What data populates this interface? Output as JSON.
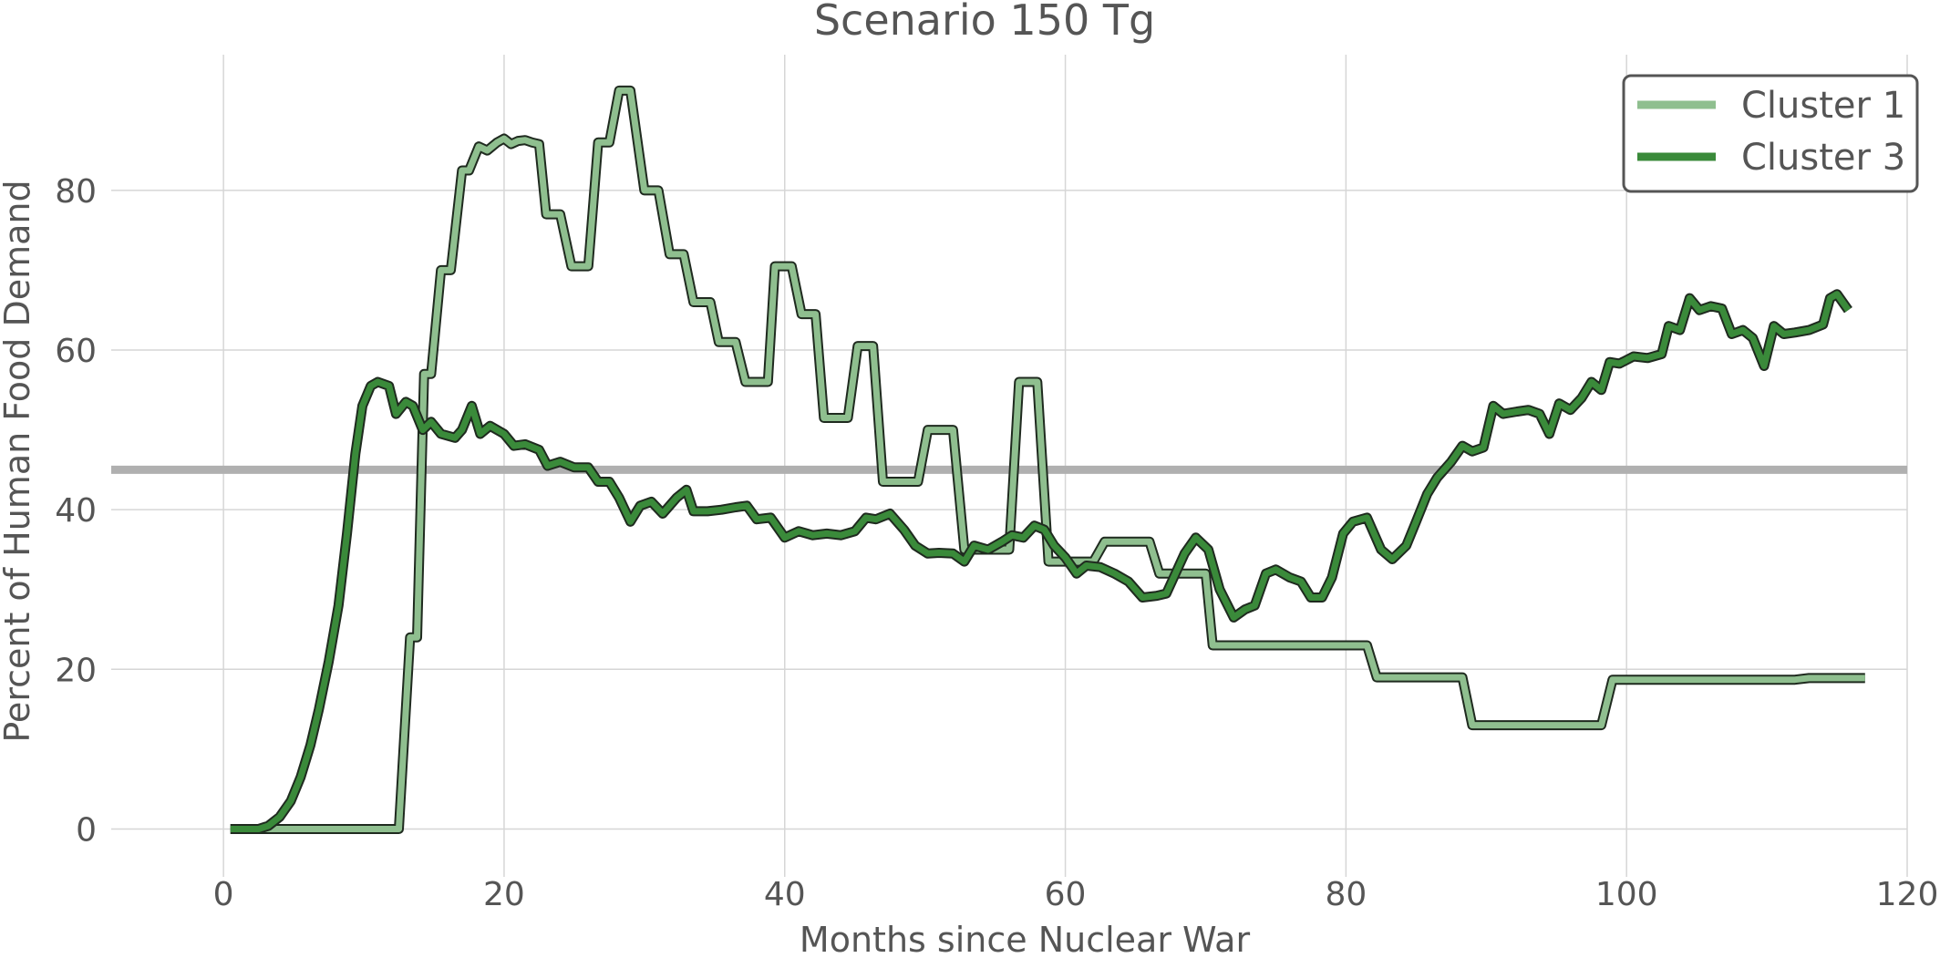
{
  "chart_data": {
    "type": "line",
    "title": "Scenario 150 Tg",
    "xlabel": "Months since Nuclear War",
    "ylabel": "Percent of Human Food Demand",
    "xlim": [
      -8,
      120
    ],
    "ylim": [
      -6,
      97
    ],
    "xticks": [
      0,
      20,
      40,
      60,
      80,
      100,
      120
    ],
    "yticks": [
      0,
      20,
      40,
      60,
      80
    ],
    "grid": true,
    "legend_position": "top-right",
    "reference_line": {
      "y": 45,
      "color": "#b0b0b0"
    },
    "series": [
      {
        "name": "Cluster 1",
        "color": "#8fbf8f",
        "points": [
          [
            0.5,
            0
          ],
          [
            12.5,
            0
          ],
          [
            13.3,
            24
          ],
          [
            13.8,
            24
          ],
          [
            14.3,
            57
          ],
          [
            14.8,
            57
          ],
          [
            15.5,
            70
          ],
          [
            16.2,
            70
          ],
          [
            17,
            82.5
          ],
          [
            17.5,
            82.5
          ],
          [
            18.2,
            85.5
          ],
          [
            18.8,
            85
          ],
          [
            19.5,
            86
          ],
          [
            20,
            86.5
          ],
          [
            20.5,
            85.8
          ],
          [
            21,
            86.2
          ],
          [
            21.5,
            86.3
          ],
          [
            22,
            86
          ],
          [
            22.5,
            85.8
          ],
          [
            23,
            77
          ],
          [
            24,
            77
          ],
          [
            24.8,
            70.5
          ],
          [
            26,
            70.5
          ],
          [
            26.7,
            86
          ],
          [
            27.5,
            86
          ],
          [
            28.2,
            92.5
          ],
          [
            29,
            92.5
          ],
          [
            30,
            80
          ],
          [
            31,
            80
          ],
          [
            31.8,
            72
          ],
          [
            32.8,
            72
          ],
          [
            33.5,
            66
          ],
          [
            34.7,
            66
          ],
          [
            35.3,
            61
          ],
          [
            36.5,
            61
          ],
          [
            37.2,
            56
          ],
          [
            38.8,
            56
          ],
          [
            39.3,
            70.5
          ],
          [
            40.5,
            70.5
          ],
          [
            41.2,
            64.5
          ],
          [
            42.2,
            64.5
          ],
          [
            42.8,
            51.5
          ],
          [
            44.5,
            51.5
          ],
          [
            45.2,
            60.5
          ],
          [
            46.3,
            60.5
          ],
          [
            47,
            43.5
          ],
          [
            49.5,
            43.5
          ],
          [
            50.2,
            50
          ],
          [
            52,
            50
          ],
          [
            52.8,
            35
          ],
          [
            56,
            35
          ],
          [
            56.7,
            56
          ],
          [
            58,
            56
          ],
          [
            58.8,
            33.5
          ],
          [
            62,
            33.5
          ],
          [
            62.8,
            36
          ],
          [
            66,
            36
          ],
          [
            66.7,
            32
          ],
          [
            70,
            32
          ],
          [
            70.5,
            23
          ],
          [
            81.5,
            23
          ],
          [
            82.2,
            19
          ],
          [
            88.3,
            19
          ],
          [
            89,
            13
          ],
          [
            98.2,
            13
          ],
          [
            99,
            18.7
          ],
          [
            110,
            18.7
          ],
          [
            112,
            18.7
          ],
          [
            113,
            18.9
          ],
          [
            117,
            18.9
          ]
        ]
      },
      {
        "name": "Cluster 3",
        "color": "#3a8a3a",
        "points": [
          [
            0.5,
            0
          ],
          [
            2.5,
            0
          ],
          [
            3.2,
            0.4
          ],
          [
            4,
            1.5
          ],
          [
            4.8,
            3.5
          ],
          [
            5.5,
            6.5
          ],
          [
            6.2,
            10.5
          ],
          [
            6.8,
            15
          ],
          [
            7.5,
            21
          ],
          [
            8.2,
            28
          ],
          [
            8.8,
            37
          ],
          [
            9.4,
            47
          ],
          [
            9.9,
            53
          ],
          [
            10.5,
            55.5
          ],
          [
            11,
            56
          ],
          [
            11.8,
            55.5
          ],
          [
            12.3,
            52
          ],
          [
            13,
            53.5
          ],
          [
            13.5,
            53
          ],
          [
            14.2,
            50
          ],
          [
            14.8,
            51
          ],
          [
            15.5,
            49.5
          ],
          [
            16.5,
            49
          ],
          [
            17,
            50
          ],
          [
            17.7,
            53
          ],
          [
            18.3,
            49.5
          ],
          [
            19,
            50.5
          ],
          [
            20,
            49.5
          ],
          [
            20.7,
            48
          ],
          [
            21.5,
            48.2
          ],
          [
            22.5,
            47.5
          ],
          [
            23.1,
            45.5
          ],
          [
            24,
            46
          ],
          [
            25,
            45.3
          ],
          [
            26,
            45.3
          ],
          [
            26.7,
            43.5
          ],
          [
            27.5,
            43.5
          ],
          [
            28.2,
            41.5
          ],
          [
            29,
            38.5
          ],
          [
            29.7,
            40.5
          ],
          [
            30.5,
            41
          ],
          [
            31.3,
            39.5
          ],
          [
            32.3,
            41.5
          ],
          [
            33,
            42.5
          ],
          [
            33.5,
            39.8
          ],
          [
            34.5,
            39.8
          ],
          [
            35.5,
            40
          ],
          [
            36.5,
            40.3
          ],
          [
            37.3,
            40.5
          ],
          [
            38,
            38.8
          ],
          [
            39,
            39
          ],
          [
            40,
            36.5
          ],
          [
            41,
            37.3
          ],
          [
            42,
            36.8
          ],
          [
            43,
            37
          ],
          [
            44,
            36.8
          ],
          [
            45,
            37.3
          ],
          [
            45.8,
            39
          ],
          [
            46.5,
            38.8
          ],
          [
            47.5,
            39.5
          ],
          [
            48.5,
            37.5
          ],
          [
            49.3,
            35.5
          ],
          [
            50.2,
            34.5
          ],
          [
            51,
            34.6
          ],
          [
            52,
            34.5
          ],
          [
            52.8,
            33.5
          ],
          [
            53.5,
            35.5
          ],
          [
            54.5,
            35
          ],
          [
            55.5,
            36
          ],
          [
            56.2,
            36.8
          ],
          [
            57,
            36.5
          ],
          [
            57.8,
            38
          ],
          [
            58.5,
            37.5
          ],
          [
            59.2,
            35.5
          ],
          [
            60,
            34
          ],
          [
            60.8,
            32
          ],
          [
            61.5,
            33
          ],
          [
            62.5,
            32.8
          ],
          [
            63.5,
            32
          ],
          [
            64.5,
            31
          ],
          [
            65.5,
            29
          ],
          [
            66.5,
            29.2
          ],
          [
            67.2,
            29.5
          ],
          [
            68.5,
            34.5
          ],
          [
            69.3,
            36.5
          ],
          [
            70.2,
            35
          ],
          [
            71,
            30
          ],
          [
            72,
            26.5
          ],
          [
            72.8,
            27.5
          ],
          [
            73.5,
            28
          ],
          [
            74.3,
            32
          ],
          [
            75,
            32.5
          ],
          [
            76,
            31.5
          ],
          [
            76.8,
            31
          ],
          [
            77.5,
            29
          ],
          [
            78.3,
            29
          ],
          [
            79,
            31.5
          ],
          [
            79.8,
            37
          ],
          [
            80.5,
            38.5
          ],
          [
            81.5,
            39
          ],
          [
            82.5,
            35
          ],
          [
            83.3,
            33.8
          ],
          [
            84.3,
            35.5
          ],
          [
            85,
            38.5
          ],
          [
            85.8,
            42
          ],
          [
            86.5,
            44
          ],
          [
            87.5,
            46
          ],
          [
            88.3,
            48
          ],
          [
            89,
            47.3
          ],
          [
            89.8,
            47.8
          ],
          [
            90.5,
            53
          ],
          [
            91.2,
            52
          ],
          [
            92.2,
            52.3
          ],
          [
            93,
            52.5
          ],
          [
            93.8,
            52
          ],
          [
            94.5,
            49.5
          ],
          [
            95.2,
            53.3
          ],
          [
            96,
            52.5
          ],
          [
            96.8,
            54
          ],
          [
            97.5,
            56
          ],
          [
            98.2,
            55
          ],
          [
            98.8,
            58.5
          ],
          [
            99.5,
            58.3
          ],
          [
            100.5,
            59.2
          ],
          [
            101.5,
            59
          ],
          [
            102.5,
            59.5
          ],
          [
            103,
            63
          ],
          [
            103.8,
            62.5
          ],
          [
            104.5,
            66.5
          ],
          [
            105.2,
            65
          ],
          [
            106,
            65.5
          ],
          [
            106.8,
            65.2
          ],
          [
            107.5,
            62
          ],
          [
            108.3,
            62.5
          ],
          [
            109,
            61.5
          ],
          [
            109.8,
            58
          ],
          [
            110.5,
            63
          ],
          [
            111.2,
            62
          ],
          [
            112,
            62.2
          ],
          [
            113,
            62.5
          ],
          [
            114,
            63.2
          ],
          [
            114.5,
            66.5
          ],
          [
            115,
            67
          ],
          [
            115.8,
            65
          ]
        ]
      }
    ]
  }
}
